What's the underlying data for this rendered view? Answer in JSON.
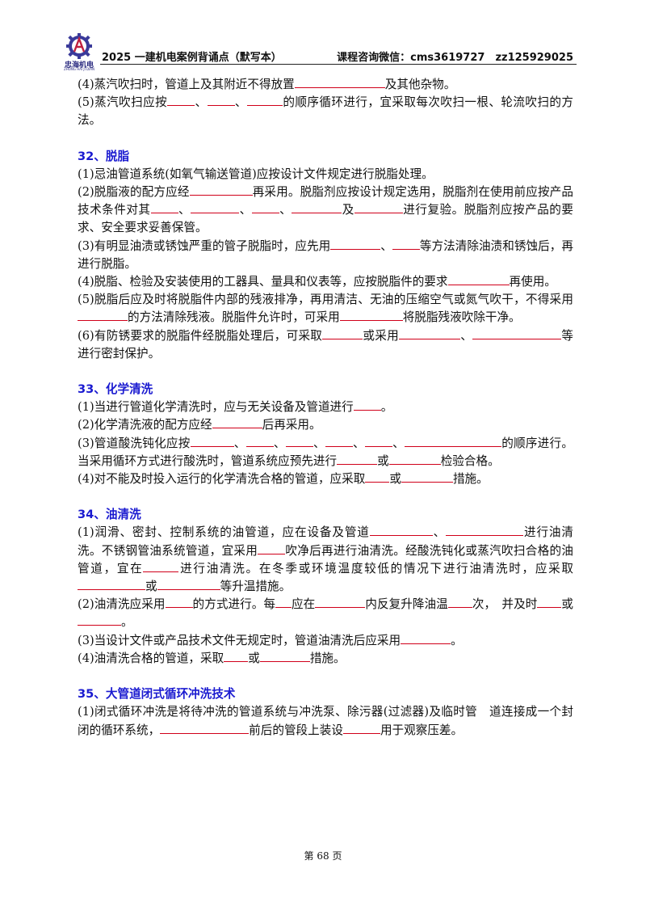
{
  "header": {
    "title": "2025 一建机电案例背诵点（默写本）",
    "contact": "课程咨询微信：cms3619727　zz125929025",
    "logo_text": "忠海机电",
    "logo_sub": "ZHONG HAI JI DIAN"
  },
  "intro": {
    "p4a": "(4)蒸汽吹扫时，管道上及其附近不得放置",
    "p4b": "及其他杂物。",
    "p5a": "(5)蒸汽吹扫应按",
    "p5b": "的顺序循环进行，宜采取每次吹扫一根、轮流吹扫的方法。"
  },
  "s32": {
    "title": "32、脱脂",
    "p1": "(1)忌油管道系统(如氧气输送管道)应按设计文件规定进行脱脂处理。",
    "p2a": "(2)脱脂液的配方应经",
    "p2b": "再采用。脱脂剂应按设计规定选用，脱脂剂在使用前应按产品技术条件对其",
    "p2c": "及",
    "p2d": "进行复验。脱脂剂应按产品的要求、安全要求妥善保管。",
    "p3a": "(3)有明显油渍或锈蚀严重的管子脱脂时，应先用",
    "p3b": "等方法清除油渍和锈蚀后，再进行脱脂。",
    "p4a": "(4)脱脂、检验及安装使用的工器具、量具和仪表等，应按脱脂件的要求",
    "p4b": "再使用。",
    "p5a": "(5)脱脂后应及时将脱脂件内部的残液排净，再用清洁、无油的压缩空气或氮气吹干，不得采用",
    "p5b": "的方法清除残液。脱脂件允许时，可采用",
    "p5c": "将脱脂残液吹除干净。",
    "p6a": "(6)有防锈要求的脱脂件经脱脂处理后，可采取",
    "p6b": "或采用",
    "p6c": "等进行密封保护。"
  },
  "s33": {
    "title": "33、化学清洗",
    "p1a": "(1)当进行管道化学清洗时，应与无关设备及管道进行",
    "p1b": "。",
    "p2a": "(2)化学清洗液的配方应经",
    "p2b": "后再采用。",
    "p3a": "(3)管道酸洗钝化应按",
    "p3b": "的顺序进行。当采用循环方式进行酸洗时，管道系统应预先进行",
    "p3c": "或",
    "p3d": "检验合格。",
    "p4a": "(4)对不能及时投入运行的化学清洗合格的管道，应采取",
    "p4b": "或",
    "p4c": "措施。"
  },
  "s34": {
    "title": "34、油清洗",
    "p1a": "(1)润滑、密封、控制系统的油管道，应在设备及管道",
    "p1b": "进行油清洗。不锈钢管油系统管道，宜采用",
    "p1c": "吹净后再进行油清洗。经酸洗钝化或蒸汽吹扫合格的油管道，宜在",
    "p1d": "进行油清洗。在冬季或环境温度较低的情况下进行油清洗时，应采取",
    "p1e": "或",
    "p1f": "等升温措施。",
    "p2a": "(2)油清洗应采用",
    "p2b": "的方式进行。每",
    "p2c": "应在",
    "p2d": "内反复升降油温",
    "p2e": "次，　并及时",
    "p2f": "或",
    "p2g": "。",
    "p3a": "(3)当设计文件或产品技术文件无规定时，管道油清洗后应采用",
    "p3b": "。",
    "p4a": "(4)油清洗合格的管道，采取",
    "p4b": "或",
    "p4c": "措施。"
  },
  "s35": {
    "title": "35、大管道闭式循环冲洗技术",
    "p1a": "(1)闭式循环冲洗是将待冲洗的管道系统与冲洗泵、除污器(过滤器)及临时管　道连接成一个封闭的循环系统，",
    "p1b": "前后的管段上装设",
    "p1c": "用于观察压差。"
  },
  "footer": {
    "page": "第 68 页"
  },
  "colors": {
    "heading": "#1a1ad0",
    "blank_line": "#d0001a",
    "logo": "#2a2a80"
  }
}
